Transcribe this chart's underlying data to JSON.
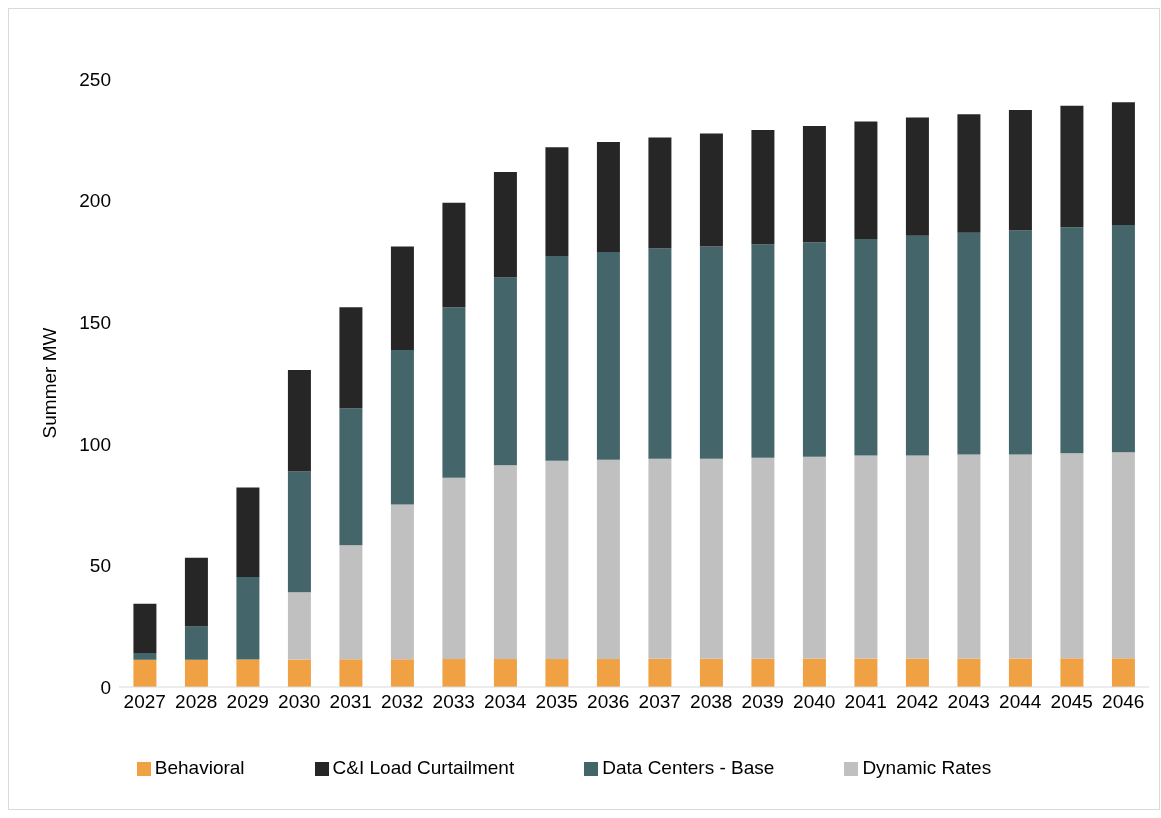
{
  "chart_data": {
    "type": "bar",
    "stacked": true,
    "ylabel": "Summer MW",
    "categories": [
      "2027",
      "2028",
      "2029",
      "2030",
      "2031",
      "2032",
      "2033",
      "2034",
      "2035",
      "2036",
      "2037",
      "2038",
      "2039",
      "2040",
      "2041",
      "2042",
      "2043",
      "2044",
      "2045",
      "2046"
    ],
    "series": [
      {
        "name": "Behavioral",
        "color": "#f0a143",
        "values": [
          11.2,
          11.2,
          11.3,
          11.3,
          11.4,
          11.4,
          11.5,
          11.5,
          11.5,
          11.5,
          11.6,
          11.6,
          11.6,
          11.7,
          11.7,
          11.7,
          11.7,
          11.7,
          11.8,
          11.8
        ]
      },
      {
        "name": "Dynamic Rates",
        "color": "#c0c0c0",
        "values": [
          0,
          0,
          0,
          27.7,
          46.9,
          63.6,
          74.5,
          79.7,
          81.5,
          81.9,
          82.3,
          82.3,
          82.7,
          83,
          83.5,
          83.5,
          83.9,
          83.9,
          84.3,
          84.7
        ]
      },
      {
        "name": "Data Centers - Base",
        "color": "#44666a",
        "values": [
          2.8,
          13.8,
          33.9,
          49.6,
          56.2,
          63.6,
          70.1,
          77.2,
          84.2,
          85.5,
          86.4,
          87.2,
          87.7,
          88.2,
          89,
          90.3,
          91.2,
          92.1,
          92.9,
          93.5
        ]
      },
      {
        "name": "C&I Load Curtailment",
        "color": "#262626",
        "values": [
          20.2,
          28.1,
          36.8,
          41.7,
          41.6,
          42.5,
          43,
          43.4,
          44.7,
          45.2,
          45.6,
          46.5,
          47,
          47.8,
          48.3,
          48.7,
          48.7,
          49.6,
          50,
          50.4
        ]
      }
    ],
    "ylim": [
      0,
      250
    ],
    "yticks": [
      0,
      50,
      100,
      150,
      200,
      250
    ],
    "grid": false,
    "legend": "bottom"
  }
}
